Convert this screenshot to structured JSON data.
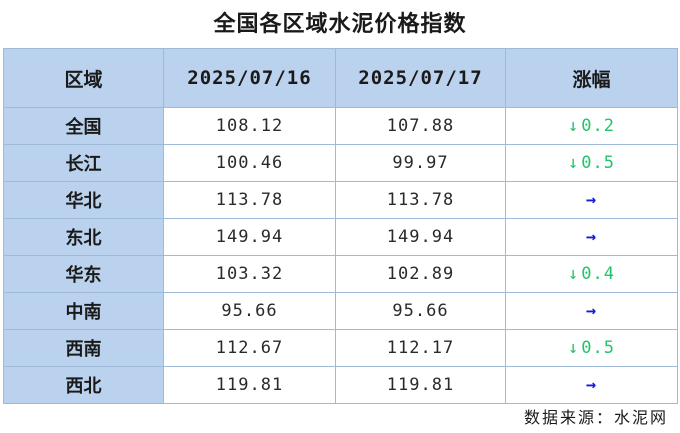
{
  "title": "全国各区域水泥价格指数",
  "header": {
    "region": "区域",
    "date1": "2025/07/16",
    "date2": "2025/07/17",
    "change": "涨幅"
  },
  "rows": [
    {
      "region": "全国",
      "v1": "108.12",
      "v2": "107.88",
      "arrow": "↓",
      "change": "0.2",
      "dir": "down"
    },
    {
      "region": "长江",
      "v1": "100.46",
      "v2": "99.97",
      "arrow": "↓",
      "change": "0.5",
      "dir": "down"
    },
    {
      "region": "华北",
      "v1": "113.78",
      "v2": "113.78",
      "arrow": "→",
      "change": "",
      "dir": "flat"
    },
    {
      "region": "东北",
      "v1": "149.94",
      "v2": "149.94",
      "arrow": "→",
      "change": "",
      "dir": "flat"
    },
    {
      "region": "华东",
      "v1": "103.32",
      "v2": "102.89",
      "arrow": "↓",
      "change": "0.4",
      "dir": "down"
    },
    {
      "region": "中南",
      "v1": "95.66",
      "v2": "95.66",
      "arrow": "→",
      "change": "",
      "dir": "flat"
    },
    {
      "region": "西南",
      "v1": "112.67",
      "v2": "112.17",
      "arrow": "↓",
      "change": "0.5",
      "dir": "down"
    },
    {
      "region": "西北",
      "v1": "119.81",
      "v2": "119.81",
      "arrow": "→",
      "change": "",
      "dir": "flat"
    }
  ],
  "source": "数据来源：水泥网",
  "colors": {
    "header_bg": "#bad2ee",
    "border": "#9fb9d8",
    "down": "#22c46a",
    "flat": "#1a1ad6"
  }
}
